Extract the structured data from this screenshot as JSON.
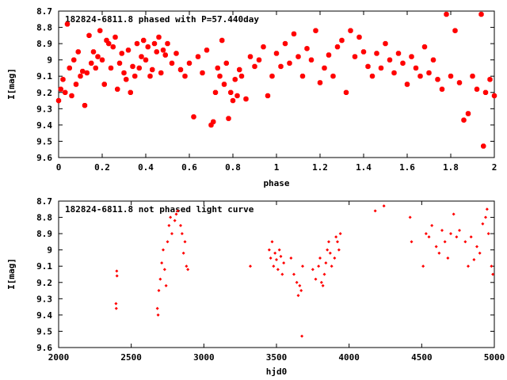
{
  "chart_data": [
    {
      "type": "scatter",
      "title": "182824-6811.8 phased with P=57.440day",
      "xlabel": "phase",
      "ylabel": "I[mag]",
      "xlim": [
        0,
        2
      ],
      "ylim": [
        9.6,
        8.7
      ],
      "y_reversed": true,
      "x_ticks": [
        "0",
        "0.2",
        "0.4",
        "0.6",
        "0.8",
        "1",
        "1.2",
        "1.4",
        "1.6",
        "1.8",
        "2"
      ],
      "y_ticks": [
        "8.7",
        "8.8",
        "8.9",
        "9",
        "9.1",
        "9.2",
        "9.3",
        "9.4",
        "9.5",
        "9.6"
      ],
      "grid": false,
      "marker_color": "#ff0000",
      "series": [
        {
          "points": [
            [
              0.0,
              9.25
            ],
            [
              0.01,
              9.18
            ],
            [
              0.02,
              9.12
            ],
            [
              0.03,
              9.2
            ],
            [
              0.04,
              8.78
            ],
            [
              0.05,
              9.05
            ],
            [
              0.06,
              9.22
            ],
            [
              0.07,
              9.0
            ],
            [
              0.08,
              9.15
            ],
            [
              0.09,
              8.95
            ],
            [
              0.1,
              9.1
            ],
            [
              0.11,
              9.07
            ],
            [
              0.12,
              9.28
            ],
            [
              0.13,
              9.08
            ],
            [
              0.14,
              8.85
            ],
            [
              0.15,
              9.02
            ],
            [
              0.16,
              8.95
            ],
            [
              0.17,
              9.05
            ],
            [
              0.18,
              8.98
            ],
            [
              0.19,
              8.82
            ],
            [
              0.2,
              9.0
            ],
            [
              0.21,
              9.15
            ],
            [
              0.22,
              8.88
            ],
            [
              0.23,
              8.9
            ],
            [
              0.24,
              9.05
            ],
            [
              0.25,
              8.92
            ],
            [
              0.26,
              8.86
            ],
            [
              0.27,
              9.18
            ],
            [
              0.28,
              9.02
            ],
            [
              0.29,
              8.96
            ],
            [
              0.3,
              9.08
            ],
            [
              0.31,
              9.12
            ],
            [
              0.32,
              8.94
            ],
            [
              0.33,
              9.2
            ],
            [
              0.34,
              9.04
            ],
            [
              0.35,
              9.1
            ],
            [
              0.36,
              8.9
            ],
            [
              0.37,
              9.05
            ],
            [
              0.38,
              8.98
            ],
            [
              0.39,
              8.88
            ],
            [
              0.4,
              9.0
            ],
            [
              0.41,
              8.92
            ],
            [
              0.42,
              9.1
            ],
            [
              0.43,
              9.06
            ],
            [
              0.44,
              8.9
            ],
            [
              0.45,
              8.95
            ],
            [
              0.46,
              8.86
            ],
            [
              0.47,
              9.08
            ],
            [
              0.48,
              8.94
            ],
            [
              0.49,
              8.97
            ],
            [
              0.5,
              8.9
            ],
            [
              0.52,
              9.02
            ],
            [
              0.54,
              8.96
            ],
            [
              0.56,
              9.06
            ],
            [
              0.58,
              9.1
            ],
            [
              0.6,
              9.02
            ],
            [
              0.62,
              9.35
            ],
            [
              0.64,
              8.98
            ],
            [
              0.66,
              9.08
            ],
            [
              0.68,
              8.94
            ],
            [
              0.7,
              9.4
            ],
            [
              0.71,
              9.38
            ],
            [
              0.72,
              9.2
            ],
            [
              0.73,
              9.05
            ],
            [
              0.74,
              9.1
            ],
            [
              0.75,
              8.88
            ],
            [
              0.76,
              9.15
            ],
            [
              0.77,
              9.02
            ],
            [
              0.78,
              9.36
            ],
            [
              0.79,
              9.2
            ],
            [
              0.8,
              9.25
            ],
            [
              0.81,
              9.12
            ],
            [
              0.82,
              9.22
            ],
            [
              0.83,
              9.06
            ],
            [
              0.84,
              9.1
            ],
            [
              0.86,
              9.24
            ],
            [
              0.88,
              8.98
            ],
            [
              0.9,
              9.04
            ],
            [
              0.92,
              9.0
            ],
            [
              0.94,
              8.92
            ],
            [
              0.96,
              9.22
            ],
            [
              0.98,
              9.1
            ],
            [
              1.0,
              8.96
            ],
            [
              1.02,
              9.04
            ],
            [
              1.04,
              8.9
            ],
            [
              1.06,
              9.02
            ],
            [
              1.08,
              8.84
            ],
            [
              1.1,
              8.98
            ],
            [
              1.12,
              9.1
            ],
            [
              1.14,
              8.93
            ],
            [
              1.16,
              9.0
            ],
            [
              1.18,
              8.82
            ],
            [
              1.2,
              9.14
            ],
            [
              1.22,
              9.05
            ],
            [
              1.24,
              8.97
            ],
            [
              1.26,
              9.1
            ],
            [
              1.28,
              8.92
            ],
            [
              1.3,
              8.88
            ],
            [
              1.32,
              9.2
            ],
            [
              1.34,
              8.82
            ],
            [
              1.36,
              8.98
            ],
            [
              1.38,
              8.86
            ],
            [
              1.4,
              8.95
            ],
            [
              1.42,
              9.04
            ],
            [
              1.44,
              9.1
            ],
            [
              1.46,
              8.96
            ],
            [
              1.48,
              9.05
            ],
            [
              1.5,
              8.9
            ],
            [
              1.52,
              9.0
            ],
            [
              1.54,
              9.08
            ],
            [
              1.56,
              8.96
            ],
            [
              1.58,
              9.02
            ],
            [
              1.6,
              9.15
            ],
            [
              1.62,
              8.98
            ],
            [
              1.64,
              9.05
            ],
            [
              1.66,
              9.1
            ],
            [
              1.68,
              8.92
            ],
            [
              1.7,
              9.08
            ],
            [
              1.72,
              9.0
            ],
            [
              1.74,
              9.12
            ],
            [
              1.76,
              9.18
            ],
            [
              1.78,
              8.72
            ],
            [
              1.8,
              9.1
            ],
            [
              1.82,
              8.82
            ],
            [
              1.84,
              9.14
            ],
            [
              1.86,
              9.37
            ],
            [
              1.88,
              9.33
            ],
            [
              1.9,
              9.1
            ],
            [
              1.92,
              9.18
            ],
            [
              1.94,
              8.72
            ],
            [
              1.95,
              9.53
            ],
            [
              1.96,
              9.2
            ],
            [
              1.98,
              9.12
            ],
            [
              2.0,
              9.22
            ]
          ]
        }
      ]
    },
    {
      "type": "scatter",
      "title": "182824-6811.8 not phased light curve",
      "xlabel": "hjd0",
      "ylabel": "I[mag]",
      "xlim": [
        2000,
        5000
      ],
      "ylim": [
        9.6,
        8.7
      ],
      "y_reversed": true,
      "x_ticks": [
        "2000",
        "2500",
        "3000",
        "3500",
        "4000",
        "4500",
        "5000"
      ],
      "y_ticks": [
        "8.7",
        "8.8",
        "8.9",
        "9",
        "9.1",
        "9.2",
        "9.3",
        "9.4",
        "9.5",
        "9.6"
      ],
      "grid": false,
      "marker_color": "#ff0000",
      "series": [
        {
          "points": [
            [
              2395,
              9.33
            ],
            [
              2397,
              9.36
            ],
            [
              2400,
              9.13
            ],
            [
              2402,
              9.16
            ],
            [
              2680,
              9.36
            ],
            [
              2685,
              9.4
            ],
            [
              2690,
              9.25
            ],
            [
              2700,
              9.18
            ],
            [
              2710,
              9.08
            ],
            [
              2720,
              9.0
            ],
            [
              2730,
              9.12
            ],
            [
              2740,
              9.22
            ],
            [
              2750,
              8.95
            ],
            [
              2760,
              8.85
            ],
            [
              2770,
              8.8
            ],
            [
              2780,
              8.9
            ],
            [
              2800,
              8.82
            ],
            [
              2810,
              8.78
            ],
            [
              2820,
              8.76
            ],
            [
              2840,
              8.85
            ],
            [
              2850,
              8.9
            ],
            [
              2860,
              9.02
            ],
            [
              2870,
              8.95
            ],
            [
              2880,
              9.1
            ],
            [
              2890,
              9.12
            ],
            [
              3320,
              9.1
            ],
            [
              3450,
              9.0
            ],
            [
              3460,
              9.05
            ],
            [
              3470,
              8.95
            ],
            [
              3480,
              9.1
            ],
            [
              3490,
              9.02
            ],
            [
              3500,
              9.06
            ],
            [
              3510,
              9.12
            ],
            [
              3520,
              9.0
            ],
            [
              3530,
              9.04
            ],
            [
              3540,
              9.15
            ],
            [
              3550,
              9.08
            ],
            [
              3600,
              9.05
            ],
            [
              3620,
              9.15
            ],
            [
              3640,
              9.2
            ],
            [
              3650,
              9.28
            ],
            [
              3660,
              9.22
            ],
            [
              3670,
              9.25
            ],
            [
              3675,
              9.53
            ],
            [
              3680,
              9.1
            ],
            [
              3750,
              9.12
            ],
            [
              3770,
              9.18
            ],
            [
              3790,
              9.1
            ],
            [
              3800,
              9.05
            ],
            [
              3810,
              9.2
            ],
            [
              3820,
              9.22
            ],
            [
              3830,
              9.15
            ],
            [
              3840,
              9.08
            ],
            [
              3850,
              9.0
            ],
            [
              3860,
              8.95
            ],
            [
              3870,
              9.02
            ],
            [
              3880,
              9.1
            ],
            [
              3900,
              9.05
            ],
            [
              3910,
              8.92
            ],
            [
              3920,
              8.95
            ],
            [
              3930,
              9.0
            ],
            [
              3940,
              8.9
            ],
            [
              4180,
              8.76
            ],
            [
              4240,
              8.73
            ],
            [
              4420,
              8.8
            ],
            [
              4430,
              8.95
            ],
            [
              4510,
              9.1
            ],
            [
              4530,
              8.9
            ],
            [
              4550,
              8.92
            ],
            [
              4570,
              8.85
            ],
            [
              4600,
              8.98
            ],
            [
              4620,
              9.02
            ],
            [
              4640,
              8.88
            ],
            [
              4660,
              8.95
            ],
            [
              4680,
              9.05
            ],
            [
              4700,
              8.9
            ],
            [
              4720,
              8.78
            ],
            [
              4740,
              8.92
            ],
            [
              4760,
              8.88
            ],
            [
              4800,
              8.95
            ],
            [
              4820,
              9.1
            ],
            [
              4840,
              8.92
            ],
            [
              4860,
              9.06
            ],
            [
              4880,
              8.98
            ],
            [
              4900,
              9.02
            ],
            [
              4920,
              8.84
            ],
            [
              4940,
              8.8
            ],
            [
              4950,
              8.75
            ],
            [
              4960,
              8.9
            ],
            [
              4980,
              9.1
            ],
            [
              4990,
              9.15
            ]
          ]
        }
      ]
    }
  ]
}
